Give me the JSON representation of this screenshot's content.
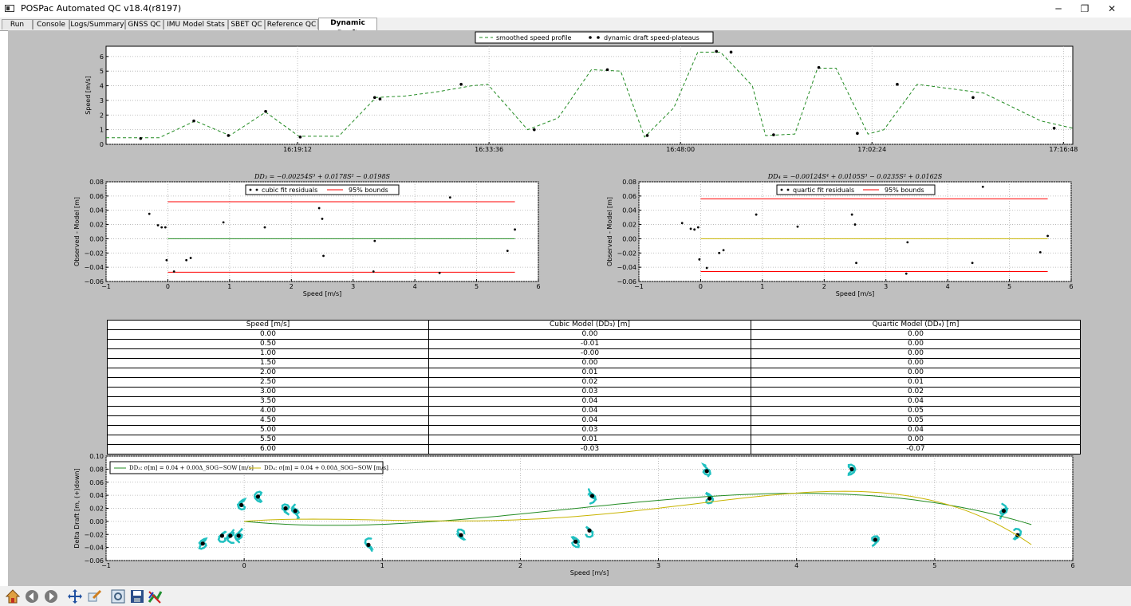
{
  "window": {
    "title": "POSPac Automated QC v18.4(r8197)",
    "controls": [
      "minimize-icon",
      "restore-icon",
      "close-icon"
    ]
  },
  "tabs": [
    {
      "label": "Run"
    },
    {
      "label": "Console"
    },
    {
      "label": "Logs/Summary"
    },
    {
      "label": "GNSS QC"
    },
    {
      "label": "IMU Model Stats"
    },
    {
      "label": "SBET QC"
    },
    {
      "label": "Reference QC"
    },
    {
      "label": "Dynamic Draft",
      "active": true
    }
  ],
  "colors": {
    "canvas": "#bfbfbf",
    "smoothed": "#228b22",
    "cubic": "#228b22",
    "quartic": "#c8b400",
    "bounds": "#ff0000",
    "cyan": "#20c0c0"
  },
  "chart_data": [
    {
      "type": "line",
      "ylabel": "Speed [m/s]",
      "ylim": [
        0,
        6.7
      ],
      "yticks": [
        0,
        1,
        2,
        3,
        4,
        5,
        6
      ],
      "xticklabels": [
        "16:19:12",
        "16:33:36",
        "16:48:00",
        "17:02:24",
        "17:16:48"
      ],
      "xtickpos_min": [
        14.4,
        28.8,
        43.2,
        57.6,
        72.0
      ],
      "xlim_min": [
        0,
        72.7
      ],
      "legend": [
        "smoothed speed profile",
        "dynamic draft speed-plateaus"
      ],
      "series": [
        {
          "name": "smoothed speed profile",
          "x": [
            0,
            2.5,
            4,
            6.7,
            9.3,
            12,
            14.5,
            17.5,
            20.3,
            22.5,
            25,
            27.5,
            28.7,
            31.7,
            34,
            36.5,
            38.7,
            40.5,
            42.7,
            44.5,
            46.2,
            48.6,
            49.6,
            51.8,
            53.5,
            54.9,
            57.3,
            58.5,
            61,
            66,
            70.3,
            72.7
          ],
          "y": [
            0.45,
            0.45,
            0.45,
            1.6,
            0.6,
            2.2,
            0.55,
            0.55,
            3.2,
            3.3,
            3.6,
            4.0,
            4.1,
            1.0,
            1.8,
            5.1,
            5.0,
            0.5,
            2.5,
            6.3,
            6.3,
            4.0,
            0.6,
            0.7,
            5.2,
            5.2,
            0.7,
            1.0,
            4.1,
            3.5,
            1.6,
            1.1
          ]
        },
        {
          "name": "dynamic draft speed-plateaus",
          "x": [
            2.6,
            6.6,
            9.2,
            12.0,
            14.6,
            20.2,
            20.6,
            26.7,
            32.2,
            37.7,
            40.7,
            45.9,
            47.0,
            50.2,
            53.6,
            56.5,
            59.5,
            65.2,
            71.3
          ],
          "y": [
            0.4,
            1.6,
            0.6,
            2.25,
            0.5,
            3.2,
            3.1,
            4.1,
            1.0,
            5.1,
            0.6,
            6.35,
            6.3,
            0.65,
            5.25,
            0.75,
            4.1,
            3.2,
            1.1
          ]
        }
      ]
    },
    {
      "type": "scatter",
      "title": "DD₃ = −0.00254S³ + 0.0178S² − 0.0198S",
      "xlabel": "Speed [m/s]",
      "ylabel": "Observed - Model [m]",
      "xlim": [
        -1,
        6
      ],
      "ylim": [
        -0.06,
        0.08
      ],
      "xticks": [
        -1,
        0,
        1,
        2,
        3,
        4,
        5,
        6
      ],
      "yticks": [
        -0.06,
        -0.04,
        -0.02,
        0.0,
        0.02,
        0.04,
        0.06,
        0.08
      ],
      "legend": [
        "cubic fit residuals",
        "95% bounds"
      ],
      "residuals_x": [
        -0.3,
        -0.16,
        -0.1,
        -0.04,
        -0.02,
        0.1,
        0.3,
        0.37,
        0.9,
        1.57,
        2.45,
        2.5,
        2.52,
        3.33,
        3.35,
        4.4,
        4.57,
        5.5,
        5.62
      ],
      "residuals_y": [
        0.035,
        0.019,
        0.016,
        0.016,
        -0.03,
        -0.046,
        -0.03,
        -0.027,
        0.023,
        0.016,
        0.043,
        0.028,
        -0.024,
        -0.046,
        -0.003,
        -0.048,
        0.058,
        -0.017,
        0.013
      ],
      "bounds": [
        0.052,
        -0.047
      ],
      "zero_line": 0.0,
      "fit_range": [
        0,
        5.62
      ]
    },
    {
      "type": "scatter",
      "title": "DD₄ = −0.00124S⁴ + 0.0105S³ − 0.0235S² + 0.0162S",
      "xlabel": "Speed [m/s]",
      "ylabel": "Observed - Model [m]",
      "xlim": [
        -1,
        6
      ],
      "ylim": [
        -0.06,
        0.08
      ],
      "xticks": [
        -1,
        0,
        1,
        2,
        3,
        4,
        5,
        6
      ],
      "yticks": [
        -0.06,
        -0.04,
        -0.02,
        0.0,
        0.02,
        0.04,
        0.06,
        0.08
      ],
      "legend": [
        "quartic fit residuals",
        "95% bounds"
      ],
      "residuals_x": [
        -0.3,
        -0.16,
        -0.1,
        -0.04,
        -0.02,
        0.1,
        0.3,
        0.37,
        0.9,
        1.57,
        2.45,
        2.5,
        2.52,
        3.33,
        3.35,
        4.4,
        4.57,
        5.5,
        5.62
      ],
      "residuals_y": [
        0.022,
        0.014,
        0.013,
        0.016,
        -0.029,
        -0.041,
        -0.02,
        -0.016,
        0.034,
        0.017,
        0.034,
        0.02,
        -0.034,
        -0.049,
        -0.005,
        -0.034,
        0.073,
        -0.019,
        0.004
      ],
      "bounds": [
        0.056,
        -0.046
      ],
      "zero_line": 0.0,
      "fit_range": [
        0,
        5.62
      ]
    },
    {
      "type": "table",
      "columns": [
        "Speed [m/s]",
        "Cubic Model (DD₃) [m]",
        "Quartic Model (DD₄) [m]"
      ],
      "rows": [
        [
          "0.00",
          "0.00",
          "0.00"
        ],
        [
          "0.50",
          "-0.01",
          "0.00"
        ],
        [
          "1.00",
          "-0.00",
          "0.00"
        ],
        [
          "1.50",
          "0.00",
          "0.00"
        ],
        [
          "2.00",
          "0.01",
          "0.00"
        ],
        [
          "2.50",
          "0.02",
          "0.01"
        ],
        [
          "3.00",
          "0.03",
          "0.02"
        ],
        [
          "3.50",
          "0.04",
          "0.04"
        ],
        [
          "4.00",
          "0.04",
          "0.05"
        ],
        [
          "4.50",
          "0.04",
          "0.05"
        ],
        [
          "5.00",
          "0.03",
          "0.04"
        ],
        [
          "5.50",
          "0.01",
          "0.00"
        ],
        [
          "6.00",
          "-0.03",
          "-0.07"
        ]
      ]
    },
    {
      "type": "scatter",
      "xlabel": "Speed [m/s]",
      "ylabel": "Delta Draft [m, (+)down]",
      "xlim": [
        -1,
        6
      ],
      "ylim": [
        -0.06,
        0.1
      ],
      "xticks": [
        -1,
        0,
        1,
        2,
        3,
        4,
        5,
        6
      ],
      "yticks": [
        -0.06,
        -0.04,
        -0.02,
        0.0,
        0.02,
        0.04,
        0.06,
        0.08,
        0.1
      ],
      "legend": [
        "DD₃: σ[m] = 0.04 + 0.00Δ_SOG−SOW [m/s]",
        "DD₄: σ[m] = 0.04 + 0.00Δ_SOG−SOW [m/s]"
      ],
      "means_x": [
        -0.3,
        -0.16,
        -0.1,
        -0.04,
        -0.02,
        0.1,
        0.3,
        0.37,
        0.9,
        1.57,
        2.4,
        2.5,
        2.52,
        3.35,
        3.37,
        4.4,
        4.57,
        5.5,
        5.6
      ],
      "means_y": [
        -0.034,
        -0.022,
        -0.022,
        -0.022,
        0.025,
        0.038,
        0.02,
        0.016,
        -0.036,
        -0.021,
        -0.031,
        -0.014,
        0.039,
        0.077,
        0.035,
        0.08,
        -0.028,
        0.016,
        -0.021
      ]
    }
  ],
  "toolbar": {
    "buttons": [
      "home-icon",
      "back-icon",
      "forward-icon",
      "pan-icon",
      "zoom-icon",
      "configure-subplots-icon",
      "save-icon",
      "edit-axis-icon"
    ]
  }
}
